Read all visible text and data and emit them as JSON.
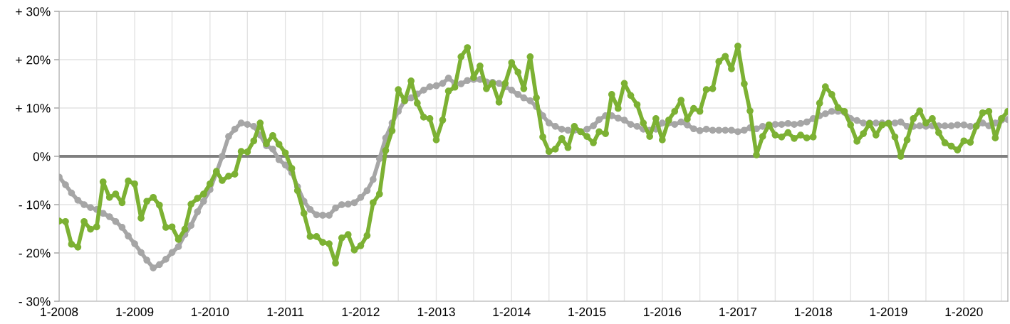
{
  "chart_data": {
    "type": "line",
    "x": [
      "2008-01",
      "2008-02",
      "2008-03",
      "2008-04",
      "2008-05",
      "2008-06",
      "2008-07",
      "2008-08",
      "2008-09",
      "2008-10",
      "2008-11",
      "2008-12",
      "2009-01",
      "2009-02",
      "2009-03",
      "2009-04",
      "2009-05",
      "2009-06",
      "2009-07",
      "2009-08",
      "2009-09",
      "2009-10",
      "2009-11",
      "2009-12",
      "2010-01",
      "2010-02",
      "2010-03",
      "2010-04",
      "2010-05",
      "2010-06",
      "2010-07",
      "2010-08",
      "2010-09",
      "2010-10",
      "2010-11",
      "2010-12",
      "2011-01",
      "2011-02",
      "2011-03",
      "2011-04",
      "2011-05",
      "2011-06",
      "2011-07",
      "2011-08",
      "2011-09",
      "2011-10",
      "2011-11",
      "2011-12",
      "2012-01",
      "2012-02",
      "2012-03",
      "2012-04",
      "2012-05",
      "2012-06",
      "2012-07",
      "2012-08",
      "2012-09",
      "2012-10",
      "2012-11",
      "2012-12",
      "2013-01",
      "2013-02",
      "2013-03",
      "2013-04",
      "2013-05",
      "2013-06",
      "2013-07",
      "2013-08",
      "2013-09",
      "2013-10",
      "2013-11",
      "2013-12",
      "2014-01",
      "2014-02",
      "2014-03",
      "2014-04",
      "2014-05",
      "2014-06",
      "2014-07",
      "2014-08",
      "2014-09",
      "2014-10",
      "2014-11",
      "2014-12",
      "2015-01",
      "2015-02",
      "2015-03",
      "2015-04",
      "2015-05",
      "2015-06",
      "2015-07",
      "2015-08",
      "2015-09",
      "2015-10",
      "2015-11",
      "2015-12",
      "2016-01",
      "2016-02",
      "2016-03",
      "2016-04",
      "2016-05",
      "2016-06",
      "2016-07",
      "2016-08",
      "2016-09",
      "2016-10",
      "2016-11",
      "2016-12",
      "2017-01",
      "2017-02",
      "2017-03",
      "2017-04",
      "2017-05",
      "2017-06",
      "2017-07",
      "2017-08",
      "2017-09",
      "2017-10",
      "2017-11",
      "2017-12",
      "2018-01",
      "2018-02",
      "2018-03",
      "2018-04",
      "2018-05",
      "2018-06",
      "2018-07",
      "2018-08",
      "2018-09",
      "2018-10",
      "2018-11",
      "2018-12",
      "2019-01",
      "2019-02",
      "2019-03",
      "2019-04",
      "2019-05",
      "2019-06",
      "2019-07",
      "2019-08",
      "2019-09",
      "2019-10",
      "2019-11",
      "2019-12",
      "2020-01",
      "2020-02",
      "2020-03",
      "2020-04",
      "2020-05",
      "2020-06",
      "2020-07",
      "2020-08"
    ],
    "series": [
      {
        "color": "#a6a6a6",
        "values": [
          -4.3,
          -5.9,
          -7.6,
          -9.1,
          -10.0,
          -10.6,
          -11.0,
          -11.8,
          -12.5,
          -13.5,
          -14.7,
          -16.5,
          -18.1,
          -19.9,
          -21.5,
          -23.1,
          -22.4,
          -21.3,
          -19.9,
          -18.7,
          -16.2,
          -14.3,
          -11.5,
          -9.3,
          -6.9,
          -3.4,
          0.0,
          4.1,
          5.6,
          6.9,
          6.6,
          6.2,
          4.4,
          2.2,
          1.5,
          -0.7,
          -1.8,
          -3.4,
          -6.3,
          -9.3,
          -11.0,
          -12.1,
          -12.2,
          -12.2,
          -10.7,
          -10.0,
          -9.9,
          -9.6,
          -8.5,
          -7.1,
          -4.8,
          -0.5,
          3.8,
          6.9,
          9.3,
          11.5,
          12.1,
          12.9,
          13.7,
          14.4,
          14.6,
          15.1,
          16.2,
          15.1,
          15.0,
          15.7,
          15.9,
          15.9,
          15.4,
          15.3,
          15.1,
          14.4,
          13.7,
          12.8,
          12.1,
          11.5,
          10.3,
          8.4,
          6.9,
          6.2,
          5.6,
          5.4,
          5.4,
          5.1,
          5.6,
          6.3,
          7.6,
          8.4,
          8.4,
          7.9,
          7.5,
          6.6,
          6.2,
          5.6,
          5.4,
          5.6,
          6.9,
          6.9,
          6.6,
          7.1,
          6.5,
          5.7,
          5.3,
          5.6,
          5.4,
          5.4,
          5.4,
          5.4,
          5.1,
          5.4,
          5.9,
          5.7,
          6.2,
          6.3,
          6.6,
          6.6,
          6.8,
          6.6,
          6.8,
          7.1,
          7.8,
          8.4,
          8.8,
          9.3,
          9.3,
          9.1,
          7.8,
          7.4,
          6.9,
          6.9,
          6.9,
          6.9,
          6.9,
          6.9,
          7.1,
          6.2,
          6.2,
          6.3,
          6.2,
          6.3,
          6.3,
          6.3,
          6.3,
          6.5,
          6.5,
          6.2,
          6.3,
          6.9,
          6.3,
          6.9,
          7.5,
          7.6
        ]
      },
      {
        "color": "#7cb133",
        "values": [
          -13.4,
          -13.5,
          -18.2,
          -18.8,
          -13.5,
          -15.1,
          -14.6,
          -5.3,
          -8.5,
          -7.8,
          -9.6,
          -5.1,
          -5.7,
          -12.8,
          -9.3,
          -8.5,
          -10.1,
          -14.7,
          -14.6,
          -17.2,
          -15.1,
          -9.9,
          -8.7,
          -7.8,
          -5.7,
          -3.1,
          -5.0,
          -4.1,
          -3.7,
          1.0,
          0.9,
          3.2,
          6.9,
          2.6,
          4.3,
          2.5,
          0.7,
          -2.5,
          -7.1,
          -11.8,
          -16.6,
          -16.6,
          -17.8,
          -18.1,
          -22.1,
          -16.9,
          -16.2,
          -19.4,
          -18.5,
          -16.4,
          -9.6,
          -7.8,
          1.2,
          5.3,
          13.8,
          11.5,
          15.6,
          11.0,
          8.1,
          7.8,
          3.4,
          7.5,
          13.5,
          14.3,
          20.6,
          22.5,
          16.3,
          18.7,
          14.0,
          15.1,
          11.2,
          15.1,
          19.4,
          17.4,
          14.0,
          20.6,
          12.1,
          4.0,
          1.0,
          1.5,
          3.7,
          1.8,
          6.2,
          5.1,
          4.1,
          2.8,
          5.1,
          4.7,
          12.8,
          9.9,
          15.1,
          12.6,
          10.7,
          6.9,
          4.1,
          7.8,
          3.4,
          7.5,
          9.3,
          11.6,
          7.7,
          9.9,
          9.3,
          13.8,
          14.0,
          19.6,
          20.7,
          18.1,
          22.8,
          15.0,
          9.4,
          0.3,
          4.1,
          6.5,
          4.4,
          4.0,
          4.9,
          3.7,
          4.4,
          3.8,
          4.0,
          11.0,
          14.4,
          12.8,
          10.1,
          9.3,
          6.5,
          3.1,
          4.7,
          6.8,
          4.4,
          6.5,
          6.8,
          4.0,
          0.0,
          3.4,
          7.8,
          9.4,
          6.9,
          7.8,
          4.9,
          2.8,
          2.1,
          1.3,
          3.2,
          2.9,
          6.2,
          9.0,
          9.3,
          3.8,
          7.8,
          9.3
        ]
      }
    ],
    "xlim": [
      "2008-01",
      "2020-08"
    ],
    "xticks": [
      {
        "value": "2008-01",
        "label": "1-2008"
      },
      {
        "value": "2008-07",
        "label": null
      },
      {
        "value": "2009-01",
        "label": "1-2009"
      },
      {
        "value": "2009-07",
        "label": null
      },
      {
        "value": "2010-01",
        "label": "1-2010"
      },
      {
        "value": "2010-07",
        "label": null
      },
      {
        "value": "2011-01",
        "label": "1-2011"
      },
      {
        "value": "2011-07",
        "label": null
      },
      {
        "value": "2012-01",
        "label": "1-2012"
      },
      {
        "value": "2012-07",
        "label": null
      },
      {
        "value": "2013-01",
        "label": "1-2013"
      },
      {
        "value": "2013-07",
        "label": null
      },
      {
        "value": "2014-01",
        "label": "1-2014"
      },
      {
        "value": "2014-07",
        "label": null
      },
      {
        "value": "2015-01",
        "label": "1-2015"
      },
      {
        "value": "2015-07",
        "label": null
      },
      {
        "value": "2016-01",
        "label": "1-2016"
      },
      {
        "value": "2016-07",
        "label": null
      },
      {
        "value": "2017-01",
        "label": "1-2017"
      },
      {
        "value": "2017-07",
        "label": null
      },
      {
        "value": "2018-01",
        "label": "1-2018"
      },
      {
        "value": "2018-07",
        "label": null
      },
      {
        "value": "2019-01",
        "label": "1-2019"
      },
      {
        "value": "2019-07",
        "label": null
      },
      {
        "value": "2020-01",
        "label": "1-2020"
      },
      {
        "value": "2020-07",
        "label": null
      }
    ],
    "ylim": [
      -30,
      30
    ],
    "yticks": [
      {
        "value": -30,
        "label": "- 30%"
      },
      {
        "value": -20,
        "label": "- 20%"
      },
      {
        "value": -10,
        "label": "- 10%"
      },
      {
        "value": 0,
        "label": "0%"
      },
      {
        "value": 10,
        "label": "+ 10%"
      },
      {
        "value": 20,
        "label": "+ 20%"
      },
      {
        "value": 30,
        "label": "+ 30%"
      }
    ],
    "ref_lines": [
      {
        "axis": "y",
        "value": 0,
        "color": "#7f7f7f"
      }
    ],
    "grid": true,
    "marker": "circle",
    "line_style": "solid",
    "legend": false
  }
}
